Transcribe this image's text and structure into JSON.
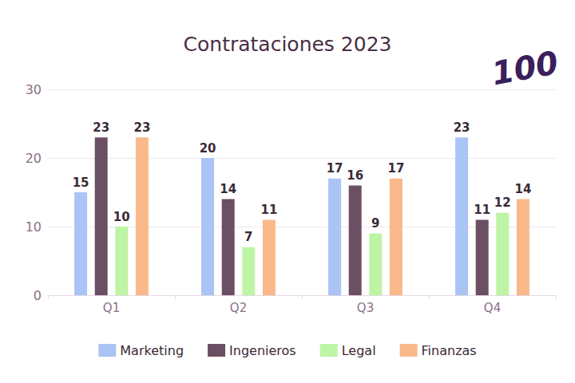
{
  "chart_data": {
    "type": "bar",
    "title": "Contrataciones 2023",
    "categories": [
      "Q1",
      "Q2",
      "Q3",
      "Q4"
    ],
    "series": [
      {
        "name": "Marketing",
        "color": "#a9c4f5",
        "values": [
          15,
          20,
          17,
          23
        ]
      },
      {
        "name": "Ingenieros",
        "color": "#6b4f62",
        "values": [
          23,
          14,
          16,
          11
        ]
      },
      {
        "name": "Legal",
        "color": "#bdf5a4",
        "values": [
          10,
          7,
          9,
          12
        ]
      },
      {
        "name": "Finanzas",
        "color": "#f9b98a",
        "values": [
          23,
          11,
          17,
          14
        ]
      }
    ],
    "ylim": [
      0,
      30
    ],
    "yticks": [
      0,
      10,
      20,
      30
    ],
    "grid": true,
    "legend": "bottom",
    "data_labels": true,
    "annotations": [
      "100"
    ]
  }
}
